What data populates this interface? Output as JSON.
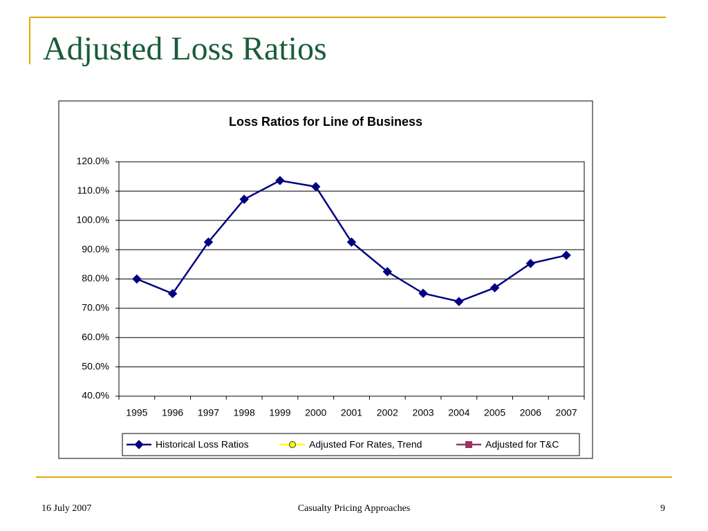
{
  "slide": {
    "title": "Adjusted Loss Ratios",
    "footer_date": "16 July 2007",
    "footer_center": "Casualty Pricing Approaches",
    "page_number": "9"
  },
  "chart_data": {
    "type": "line",
    "title": "Loss Ratios for Line of Business",
    "categories": [
      "1995",
      "1996",
      "1997",
      "1998",
      "1999",
      "2000",
      "2001",
      "2002",
      "2003",
      "2004",
      "2005",
      "2006",
      "2007"
    ],
    "series": [
      {
        "name": "Historical Loss Ratios",
        "color": "#000080",
        "marker": "diamond",
        "values": [
          80.0,
          75.0,
          92.6,
          107.2,
          113.6,
          111.5,
          92.6,
          82.5,
          75.1,
          72.3,
          77.0,
          85.3,
          88.1
        ]
      },
      {
        "name": "Adjusted For Rates, Trend",
        "color": "#ffff00",
        "marker": "circle",
        "values": [
          null,
          null,
          null,
          null,
          null,
          null,
          null,
          null,
          null,
          null,
          null,
          null,
          null
        ]
      },
      {
        "name": "Adjusted for T&C",
        "color": "#993366",
        "marker": "square",
        "values": [
          null,
          null,
          null,
          null,
          null,
          null,
          null,
          null,
          null,
          null,
          null,
          null,
          null
        ]
      }
    ],
    "ylim": [
      40,
      120
    ],
    "yticks": [
      {
        "value": 40,
        "label": "40.0%"
      },
      {
        "value": 50,
        "label": "50.0%"
      },
      {
        "value": 60,
        "label": "60.0%"
      },
      {
        "value": 70,
        "label": "70.0%"
      },
      {
        "value": 80,
        "label": "80.0%"
      },
      {
        "value": 90,
        "label": "90.0%"
      },
      {
        "value": 100,
        "label": "100.0%"
      },
      {
        "value": 110,
        "label": "110.0%"
      },
      {
        "value": 120,
        "label": "120.0%"
      }
    ],
    "grid": true,
    "legend": "bottom"
  }
}
